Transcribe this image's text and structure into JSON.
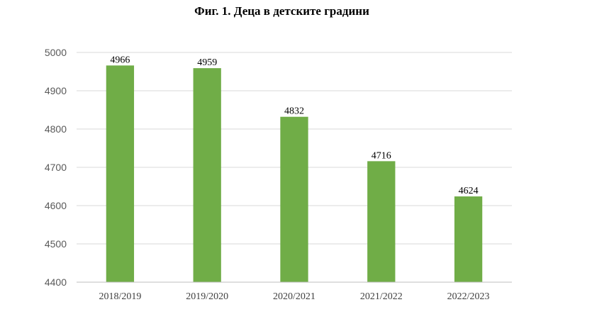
{
  "chart_data": {
    "type": "bar",
    "title": "Фиг. 1. Деца в детските градини",
    "xlabel": "",
    "ylabel": "",
    "categories": [
      "2018/2019",
      "2019/2020",
      "2020/2021",
      "2021/2022",
      "2022/2023"
    ],
    "values": [
      4966,
      4959,
      4832,
      4716,
      4624
    ],
    "data_labels": [
      "4966",
      "4959",
      "4832",
      "4716",
      "4624"
    ],
    "y_ticks": [
      "4400",
      "4500",
      "4600",
      "4700",
      "4800",
      "4900",
      "5000"
    ],
    "ylim": [
      4400,
      5000
    ],
    "grid": true,
    "legend": "none",
    "colors": {
      "bar": "#70AD47",
      "grid": "#D9D9D9",
      "axis": "#BFBFBF"
    }
  }
}
